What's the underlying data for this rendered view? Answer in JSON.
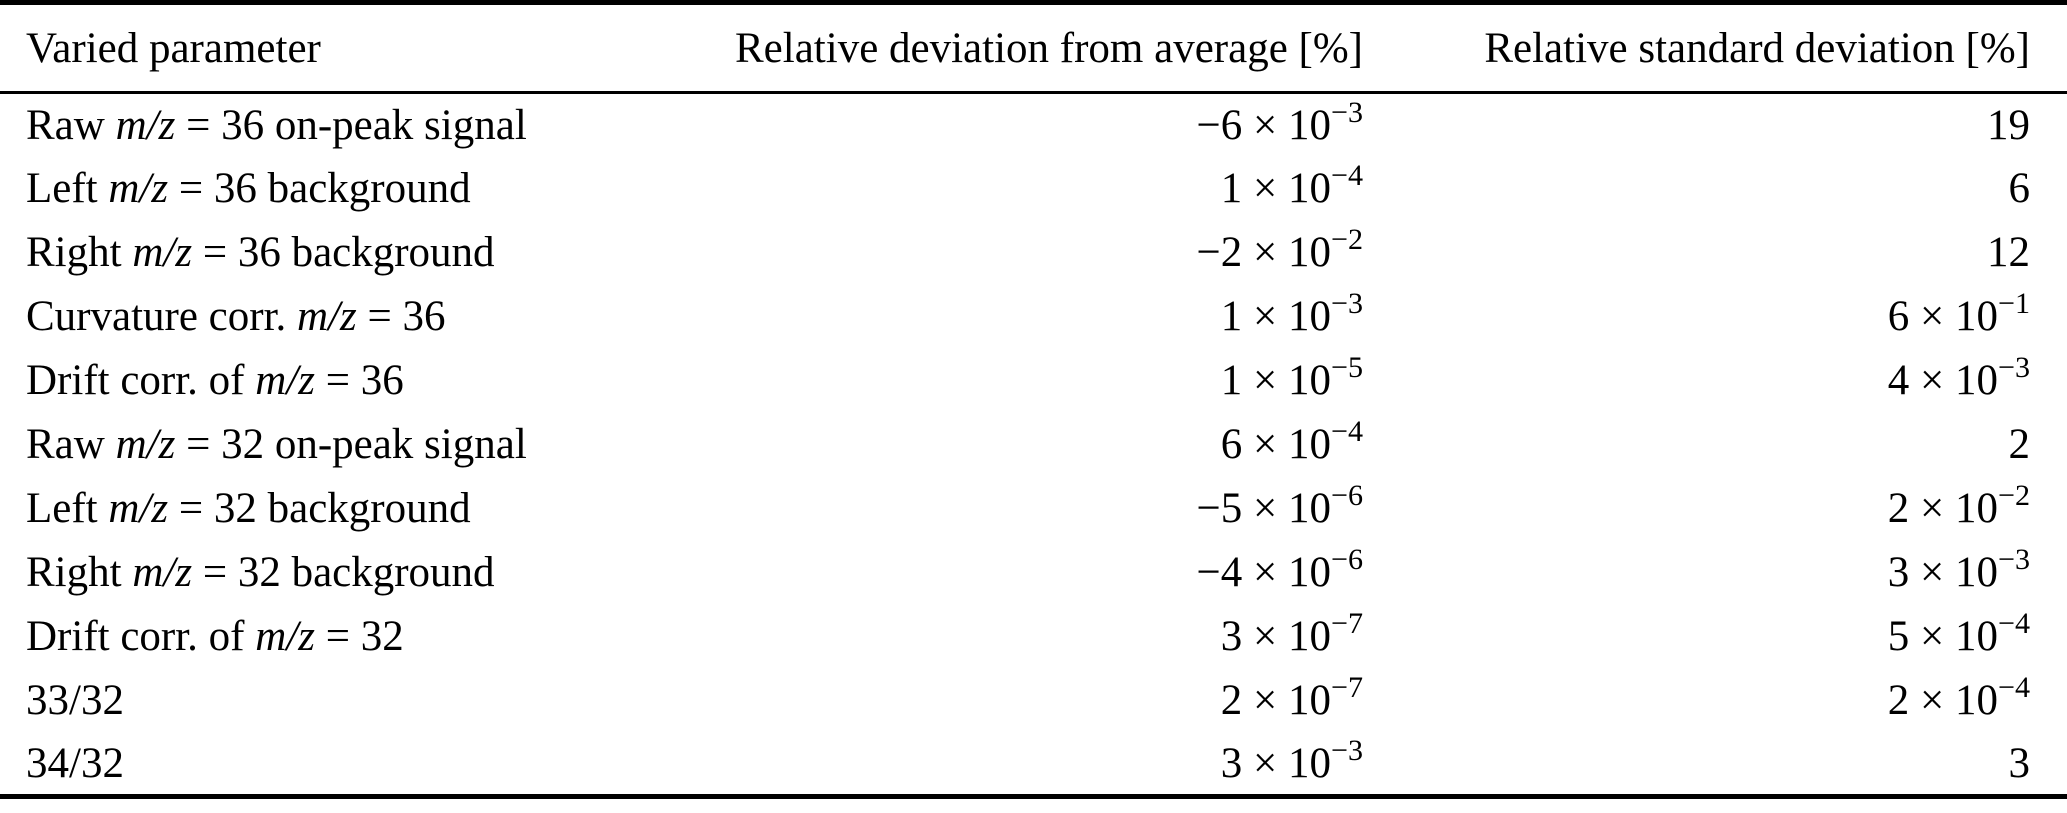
{
  "colors": {
    "background": "#ffffff",
    "text": "#000000",
    "rule": "#000000"
  },
  "table": {
    "columns": [
      {
        "label": "Varied parameter",
        "align": "left"
      },
      {
        "label": "Relative deviation from average [%]",
        "align": "right"
      },
      {
        "label": "Relative standard deviation [%]",
        "align": "right"
      }
    ],
    "notation": {
      "times": "×",
      "base": "10"
    },
    "rows": [
      {
        "parameter": [
          {
            "text": "Raw ",
            "italic": false
          },
          {
            "text": "m/z",
            "italic": true
          },
          {
            "text": " = 36 on-peak signal",
            "italic": false
          }
        ],
        "deviation": {
          "mantissa": "−6",
          "exponent": "−3"
        },
        "std_dev": {
          "mantissa": "19",
          "exponent": null
        }
      },
      {
        "parameter": [
          {
            "text": "Left ",
            "italic": false
          },
          {
            "text": "m/z",
            "italic": true
          },
          {
            "text": " = 36 background",
            "italic": false
          }
        ],
        "deviation": {
          "mantissa": "1",
          "exponent": "−4"
        },
        "std_dev": {
          "mantissa": "6",
          "exponent": null
        }
      },
      {
        "parameter": [
          {
            "text": "Right ",
            "italic": false
          },
          {
            "text": "m/z",
            "italic": true
          },
          {
            "text": " = 36 background",
            "italic": false
          }
        ],
        "deviation": {
          "mantissa": "−2",
          "exponent": "−2"
        },
        "std_dev": {
          "mantissa": "12",
          "exponent": null
        }
      },
      {
        "parameter": [
          {
            "text": "Curvature corr. ",
            "italic": false
          },
          {
            "text": "m/z",
            "italic": true
          },
          {
            "text": " = 36",
            "italic": false
          }
        ],
        "deviation": {
          "mantissa": "1",
          "exponent": "−3"
        },
        "std_dev": {
          "mantissa": "6",
          "exponent": "−1"
        }
      },
      {
        "parameter": [
          {
            "text": "Drift corr. of ",
            "italic": false
          },
          {
            "text": "m/z",
            "italic": true
          },
          {
            "text": " = 36",
            "italic": false
          }
        ],
        "deviation": {
          "mantissa": "1",
          "exponent": "−5"
        },
        "std_dev": {
          "mantissa": "4",
          "exponent": "−3"
        }
      },
      {
        "parameter": [
          {
            "text": "Raw ",
            "italic": false
          },
          {
            "text": "m/z",
            "italic": true
          },
          {
            "text": " = 32 on-peak signal",
            "italic": false
          }
        ],
        "deviation": {
          "mantissa": "6",
          "exponent": "−4"
        },
        "std_dev": {
          "mantissa": "2",
          "exponent": null
        }
      },
      {
        "parameter": [
          {
            "text": "Left ",
            "italic": false
          },
          {
            "text": "m/z",
            "italic": true
          },
          {
            "text": " = 32 background",
            "italic": false
          }
        ],
        "deviation": {
          "mantissa": "−5",
          "exponent": "−6"
        },
        "std_dev": {
          "mantissa": "2",
          "exponent": "−2"
        }
      },
      {
        "parameter": [
          {
            "text": "Right ",
            "italic": false
          },
          {
            "text": "m/z",
            "italic": true
          },
          {
            "text": " = 32 background",
            "italic": false
          }
        ],
        "deviation": {
          "mantissa": "−4",
          "exponent": "−6"
        },
        "std_dev": {
          "mantissa": "3",
          "exponent": "−3"
        }
      },
      {
        "parameter": [
          {
            "text": "Drift corr. of ",
            "italic": false
          },
          {
            "text": "m/z",
            "italic": true
          },
          {
            "text": " = 32",
            "italic": false
          }
        ],
        "deviation": {
          "mantissa": "3",
          "exponent": "−7"
        },
        "std_dev": {
          "mantissa": "5",
          "exponent": "−4"
        }
      },
      {
        "parameter": [
          {
            "text": "33/32",
            "italic": false
          }
        ],
        "deviation": {
          "mantissa": "2",
          "exponent": "−7"
        },
        "std_dev": {
          "mantissa": "2",
          "exponent": "−4"
        }
      },
      {
        "parameter": [
          {
            "text": "34/32",
            "italic": false
          }
        ],
        "deviation": {
          "mantissa": "3",
          "exponent": "−3"
        },
        "std_dev": {
          "mantissa": "3",
          "exponent": null
        }
      }
    ]
  }
}
